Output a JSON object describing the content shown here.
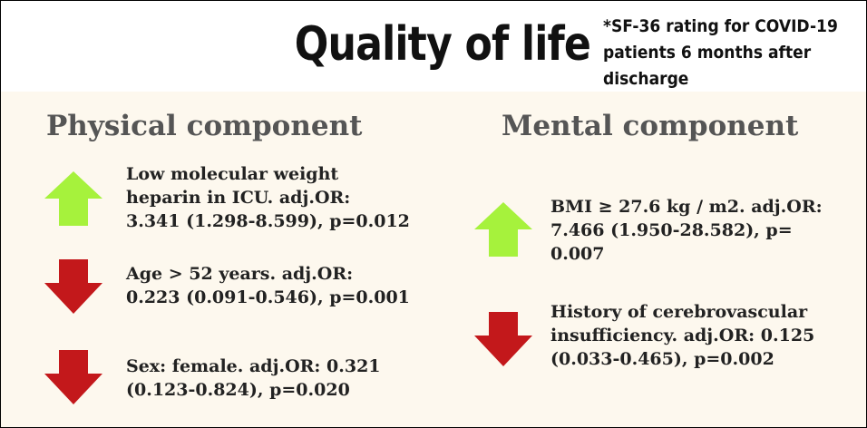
{
  "header": {
    "title": "Quality of life",
    "note_lines": [
      "*SF-36 rating for COVID-19",
      "patients 6 months after",
      "discharge"
    ]
  },
  "physical": {
    "heading": "Physical component",
    "items": [
      {
        "direction": "up",
        "lines": [
          "Low molecular weight",
          "heparin in ICU. adj.OR:",
          "3.341 (1.298-8.599), p=0.012"
        ]
      },
      {
        "direction": "down",
        "lines": [
          "Age > 52 years. adj.OR:",
          "0.223 (0.091-0.546), p=0.001"
        ]
      },
      {
        "direction": "down",
        "lines": [
          "Sex: female. adj.OR: 0.321",
          "(0.123-0.824), p=0.020"
        ]
      }
    ]
  },
  "mental": {
    "heading": "Mental component",
    "items": [
      {
        "direction": "up",
        "lines": [
          "BMI ≥ 27.6 kg / m2. adj.OR:",
          "7.466 (1.950-28.582), p=",
          "0.007"
        ]
      },
      {
        "direction": "down",
        "lines": [
          "History of cerebrovascular",
          "insufficiency. adj.OR: 0.125",
          "(0.033-0.465), p=0.002"
        ]
      }
    ]
  }
}
